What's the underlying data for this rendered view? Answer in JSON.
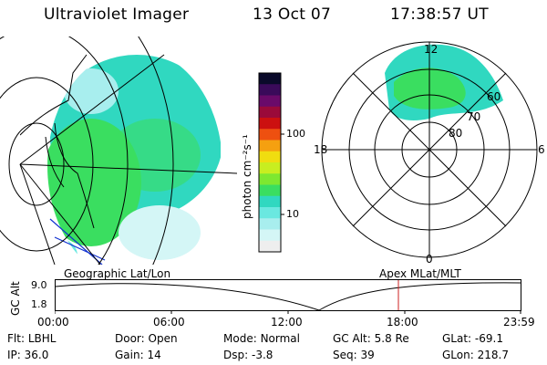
{
  "header": {
    "title": "Ultraviolet Imager",
    "date": "13 Oct 07",
    "time": "17:38:57 UT"
  },
  "colorbar": {
    "unit_label": "photon cm⁻²s⁻¹",
    "ticks": [
      "100",
      "10"
    ],
    "colors": [
      "#0a0a2a",
      "#3a0a5a",
      "#6a0a6a",
      "#9a0a3a",
      "#cc1010",
      "#ee5010",
      "#f5a010",
      "#f0dd10",
      "#c8ee20",
      "#7ee830",
      "#3ade60",
      "#30d8c0",
      "#6ae8e0",
      "#a8eeee",
      "#d4f6f6",
      "#eeeeee"
    ]
  },
  "polar": {
    "labels": {
      "top": "12",
      "left": "18",
      "right": "6",
      "bottom": "0"
    },
    "lat_labels": [
      "60",
      "70",
      "80"
    ]
  },
  "timeline": {
    "y_axis_title": "GC Alt",
    "y_ticks": [
      "9.0",
      "1.8"
    ],
    "left_label": "Geographic Lat/Lon",
    "right_label": "Apex MLat/MLT",
    "x_ticks": [
      "00:00",
      "06:00",
      "12:00",
      "18:00",
      "23:59"
    ],
    "marker_color": "#cc2020"
  },
  "status": {
    "row1": [
      {
        "key": "Flt:",
        "val": "LBHL"
      },
      {
        "key": "Door:",
        "val": "Open"
      },
      {
        "key": "Mode:",
        "val": "Normal"
      },
      {
        "key": "GC Alt:",
        "val": "5.8 Re"
      },
      {
        "key": "GLat:",
        "val": "-69.1"
      }
    ],
    "row2": [
      {
        "key": "IP:",
        "val": "36.0"
      },
      {
        "key": "Gain:",
        "val": "14"
      },
      {
        "key": "Dsp:",
        "val": "-3.8"
      },
      {
        "key": "Seq:",
        "val": "39"
      },
      {
        "key": "GLon:",
        "val": "218.7"
      }
    ]
  }
}
